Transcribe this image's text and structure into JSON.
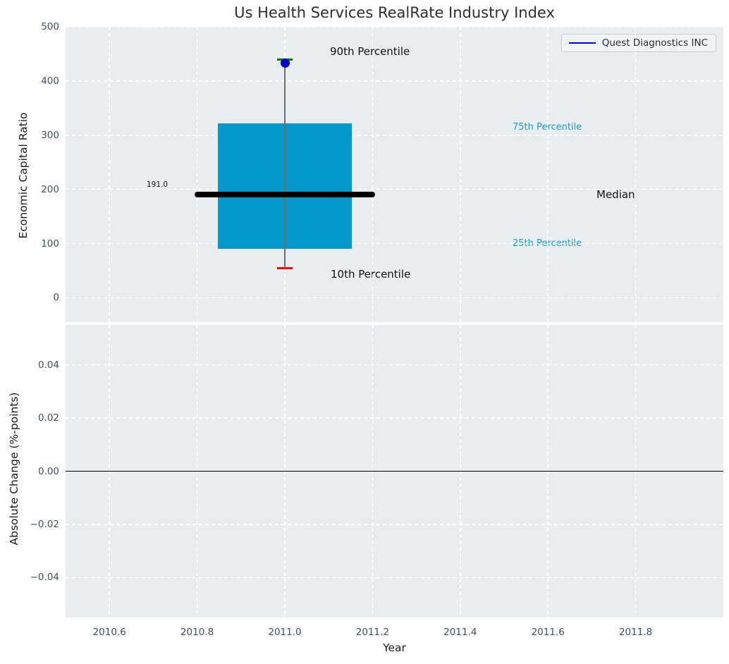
{
  "title": "Us Health Services RealRate Industry Index",
  "axes": {
    "top": {
      "ylabel": "Economic Capital Ratio"
    },
    "bottom": {
      "ylabel": "Absolute Change (%-points)"
    },
    "xlabel": "Year"
  },
  "legend": {
    "label": "Quest Diagnostics INC"
  },
  "annotations": {
    "p90": "90th Percentile",
    "p75": "75th Percentile",
    "median": "Median",
    "p25": "25th Percentile",
    "p10": "10th Percentile"
  },
  "chart_data": [
    {
      "type": "boxplot",
      "title": "Us Health Services RealRate Industry Index",
      "xlabel": "Year",
      "ylabel": "Economic Capital Ratio",
      "xlim": [
        2010.5,
        2012.0
      ],
      "ylim": [
        -45,
        500
      ],
      "x_ticks": [
        2010.6,
        2010.8,
        2011.0,
        2011.2,
        2011.4,
        2011.6,
        2011.8
      ],
      "x_tick_labels": [
        "2010.6",
        "2010.8",
        "2011.0",
        "2011.2",
        "2011.4",
        "2011.6",
        "2011.8"
      ],
      "y_ticks": [
        0,
        100,
        200,
        300,
        400,
        500
      ],
      "y_tick_labels": [
        "0",
        "100",
        "200",
        "300",
        "400",
        "500"
      ],
      "grid": {
        "on": true,
        "style": "dashed",
        "color": "#ffffff"
      },
      "legend": {
        "label": "Quest Diagnostics INC",
        "position": "upper right"
      },
      "box": {
        "x": 2011.0,
        "p10": 55,
        "p25": 90,
        "median": 191,
        "p75": 322,
        "p90": 440,
        "median_label": "191.0",
        "company_point": {
          "label": "Quest Diagnostics INC",
          "x": 2011.0,
          "value": 433
        },
        "box_half_width": 0.152,
        "median_half_width": 0.205,
        "cap_half_width": 0.018
      },
      "colors": {
        "box_fill": "#0598ca",
        "median_line": "#000000",
        "whisker": "#6e6e6e",
        "p90_cap": "#007a00",
        "p10_cap": "#fe0000",
        "company_point": "#0000cd",
        "legend_line": "#0000cd",
        "percentile_label_blue": "#199dd1",
        "axes_bg": "#e9edef",
        "grid": "#ffffff",
        "tick_label": "#3d4f63"
      }
    },
    {
      "type": "line",
      "ylabel": "Absolute Change (%-points)",
      "xlim": [
        2010.5,
        2012.0
      ],
      "ylim": [
        -0.055,
        0.055
      ],
      "x_ticks": [
        2010.6,
        2010.8,
        2011.0,
        2011.2,
        2011.4,
        2011.6,
        2011.8
      ],
      "y_ticks": [
        0.04,
        0.02,
        0.0,
        -0.02,
        -0.04
      ],
      "y_tick_labels": [
        "0.04",
        "0.02",
        "0.00",
        "−0.02",
        "−0.04"
      ],
      "zero_line": 0.0,
      "series": []
    }
  ]
}
